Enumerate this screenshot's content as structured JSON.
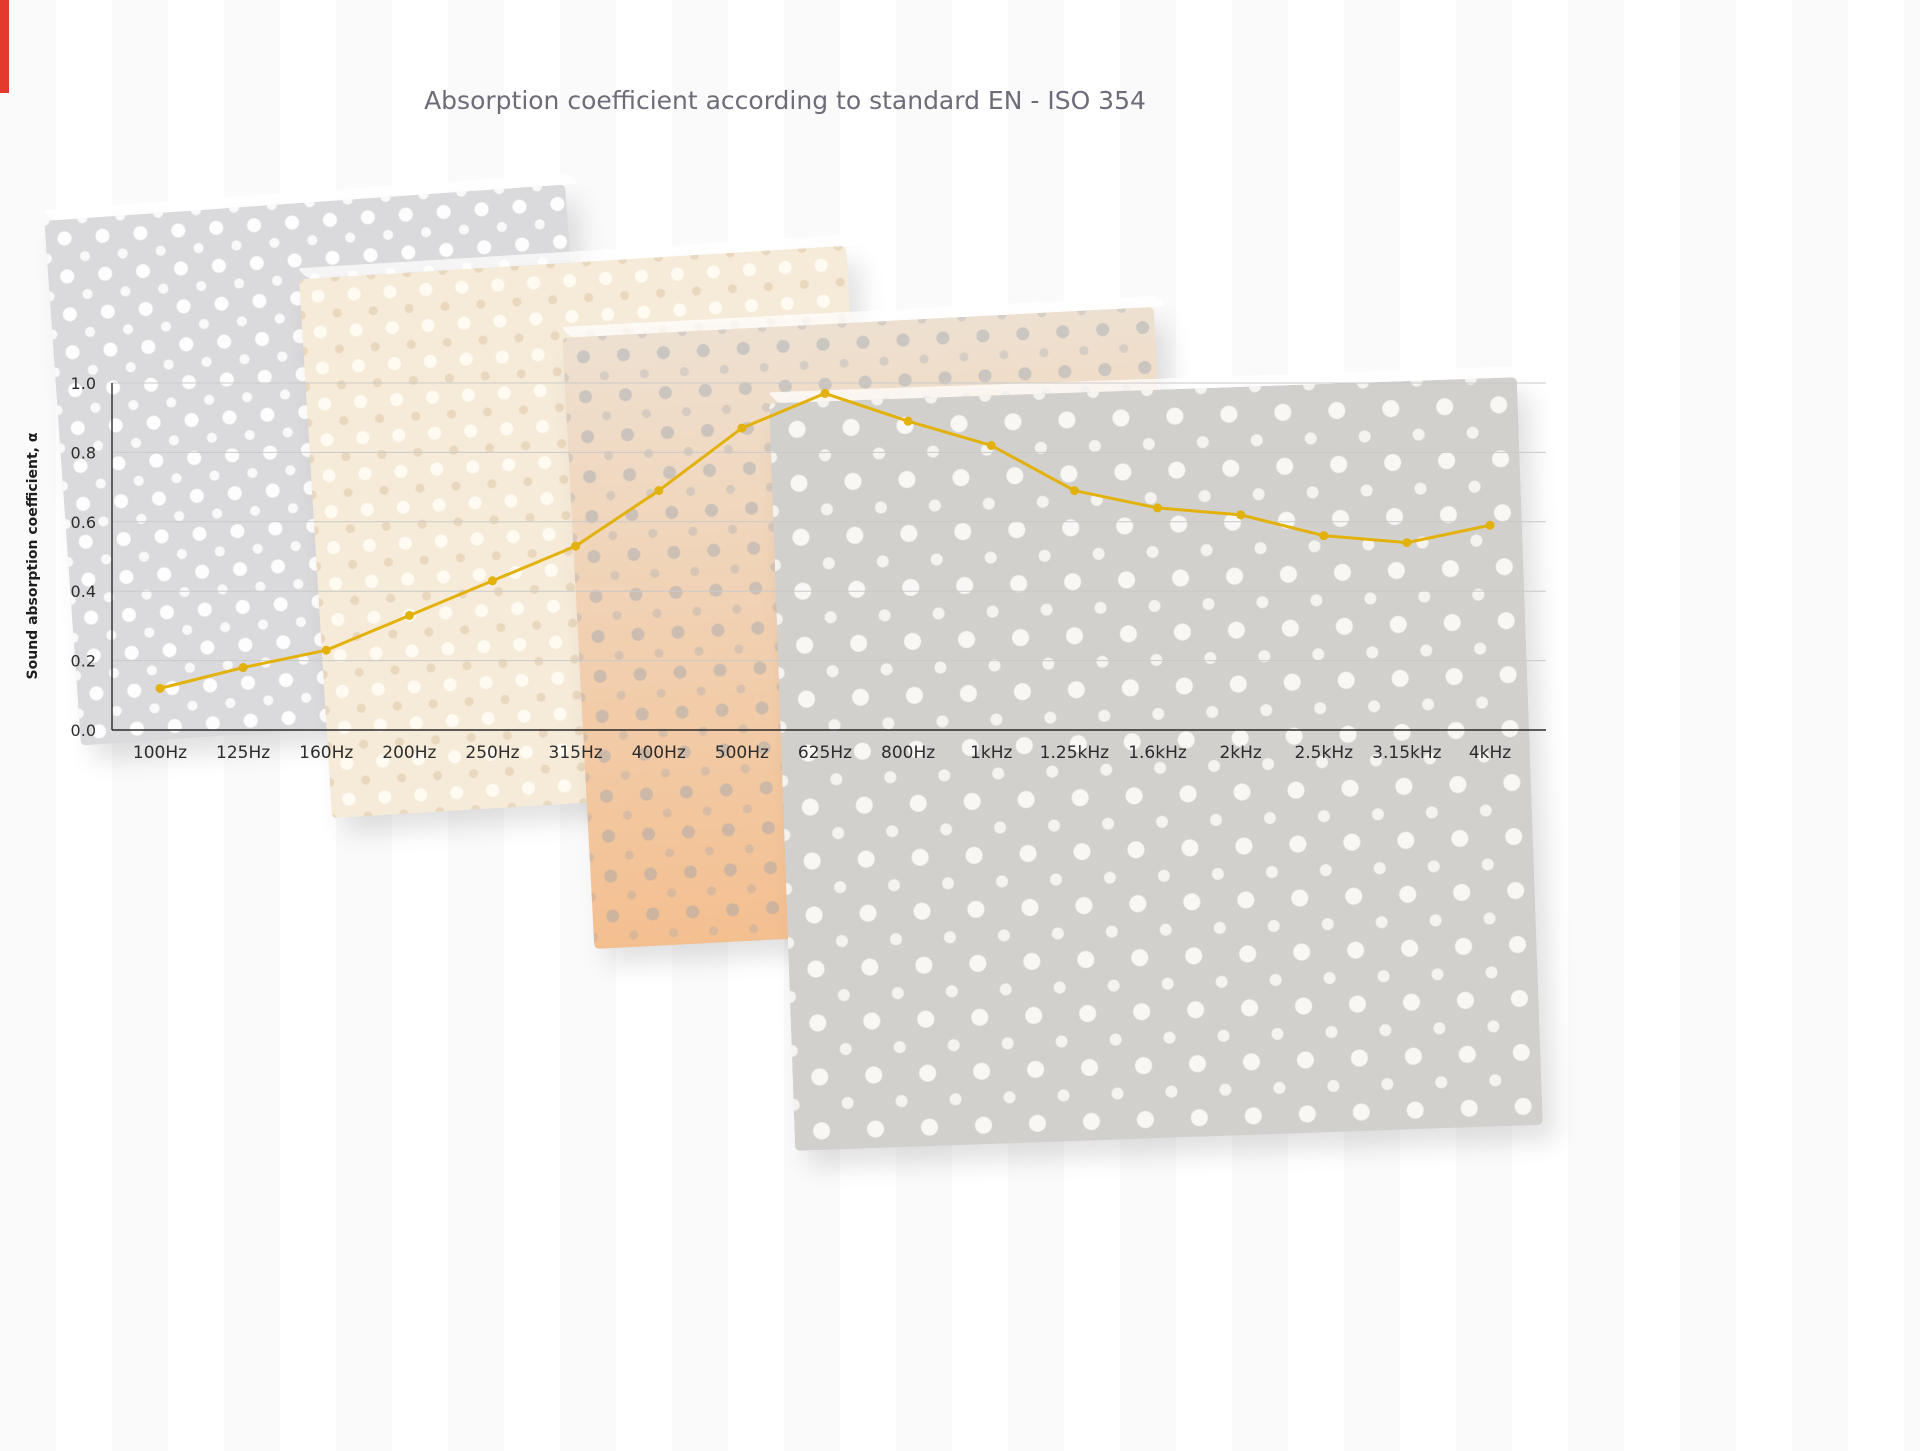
{
  "page": {
    "background_color": "#ffffff",
    "left_edge_accent_color": "#e23b2e"
  },
  "chart_data": {
    "type": "line",
    "title": "Absorption coefficient according to standard EN - ISO 354",
    "xlabel": "",
    "ylabel": "Sound absorption coefficient, α",
    "categories": [
      "100Hz",
      "125Hz",
      "160Hz",
      "200Hz",
      "250Hz",
      "315Hz",
      "400Hz",
      "500Hz",
      "625Hz",
      "800Hz",
      "1kHz",
      "1.25kHz",
      "1.6kHz",
      "2kHz",
      "2.5kHz",
      "3.15kHz",
      "4kHz"
    ],
    "values": [
      0.12,
      0.18,
      0.23,
      0.33,
      0.43,
      0.53,
      0.69,
      0.87,
      0.97,
      0.89,
      0.82,
      0.69,
      0.64,
      0.62,
      0.56,
      0.54,
      0.59
    ],
    "ylim": [
      0.0,
      1.0
    ],
    "yticks": [
      0.0,
      0.2,
      0.4,
      0.6,
      0.8,
      1.0
    ],
    "grid": true,
    "legend": false,
    "line_color": "#e2b10b",
    "marker": "circle"
  },
  "background_panels": [
    {
      "name": "perforated-panel-gray-small",
      "base_color": "#dadadc",
      "dot_color": "#ffffff"
    },
    {
      "name": "perforated-panel-cream",
      "base_color": "#f6ebd9",
      "dot_color": "#fdf6e9"
    },
    {
      "name": "perforated-panel-orange",
      "base_color": "#f3cda6",
      "dot_color": "#94a0af"
    },
    {
      "name": "perforated-panel-gray-large",
      "base_color": "#d2d0cc",
      "dot_color": "#faf9f6"
    }
  ]
}
